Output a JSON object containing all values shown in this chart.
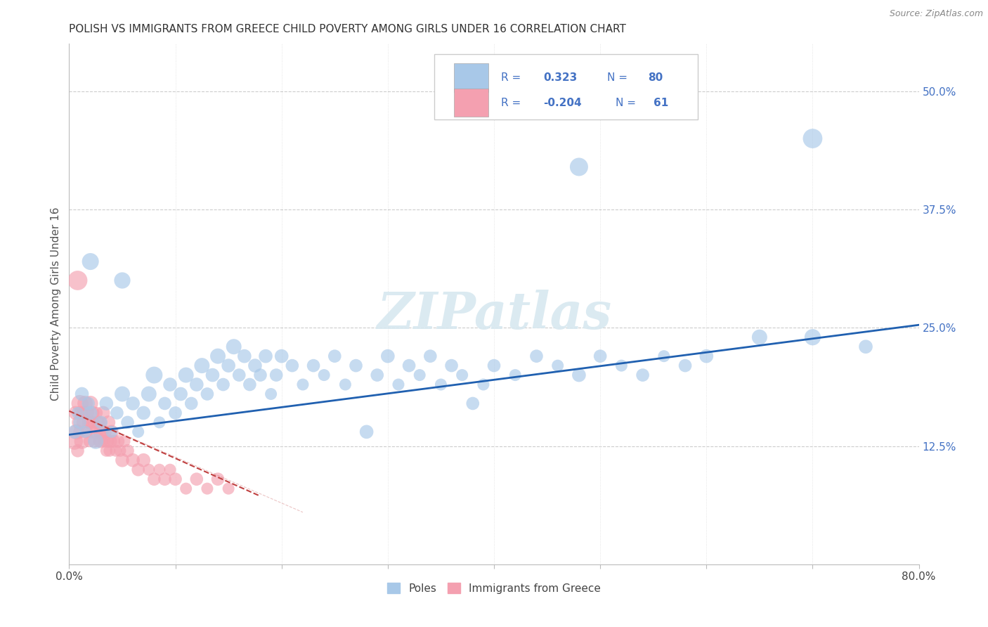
{
  "title": "POLISH VS IMMIGRANTS FROM GREECE CHILD POVERTY AMONG GIRLS UNDER 16 CORRELATION CHART",
  "source": "Source: ZipAtlas.com",
  "ylabel": "Child Poverty Among Girls Under 16",
  "xlim": [
    0.0,
    0.8
  ],
  "ylim": [
    0.0,
    0.55
  ],
  "blue_color": "#a8c8e8",
  "pink_color": "#f4a0b0",
  "trend_blue": "#2060b0",
  "trend_pink": "#c04040",
  "watermark": "ZIPatlas",
  "bg_color": "#ffffff",
  "poles_x": [
    0.005,
    0.008,
    0.01,
    0.012,
    0.015,
    0.018,
    0.02,
    0.025,
    0.03,
    0.035,
    0.04,
    0.045,
    0.05,
    0.055,
    0.06,
    0.065,
    0.07,
    0.075,
    0.08,
    0.085,
    0.09,
    0.095,
    0.1,
    0.105,
    0.11,
    0.115,
    0.12,
    0.125,
    0.13,
    0.135,
    0.14,
    0.145,
    0.15,
    0.155,
    0.16,
    0.165,
    0.17,
    0.175,
    0.18,
    0.185,
    0.19,
    0.195,
    0.2,
    0.21,
    0.22,
    0.23,
    0.24,
    0.25,
    0.26,
    0.27,
    0.28,
    0.29,
    0.3,
    0.31,
    0.32,
    0.33,
    0.34,
    0.35,
    0.36,
    0.37,
    0.38,
    0.39,
    0.4,
    0.42,
    0.44,
    0.46,
    0.48,
    0.5,
    0.52,
    0.54,
    0.56,
    0.58,
    0.6,
    0.65,
    0.7,
    0.75,
    0.02,
    0.05,
    0.48,
    0.7
  ],
  "poles_y": [
    0.14,
    0.16,
    0.15,
    0.18,
    0.14,
    0.17,
    0.16,
    0.13,
    0.15,
    0.17,
    0.14,
    0.16,
    0.18,
    0.15,
    0.17,
    0.14,
    0.16,
    0.18,
    0.2,
    0.15,
    0.17,
    0.19,
    0.16,
    0.18,
    0.2,
    0.17,
    0.19,
    0.21,
    0.18,
    0.2,
    0.22,
    0.19,
    0.21,
    0.23,
    0.2,
    0.22,
    0.19,
    0.21,
    0.2,
    0.22,
    0.18,
    0.2,
    0.22,
    0.21,
    0.19,
    0.21,
    0.2,
    0.22,
    0.19,
    0.21,
    0.14,
    0.2,
    0.22,
    0.19,
    0.21,
    0.2,
    0.22,
    0.19,
    0.21,
    0.2,
    0.17,
    0.19,
    0.21,
    0.2,
    0.22,
    0.21,
    0.2,
    0.22,
    0.21,
    0.2,
    0.22,
    0.21,
    0.22,
    0.24,
    0.24,
    0.23,
    0.32,
    0.3,
    0.42,
    0.45
  ],
  "greece_x": [
    0.005,
    0.006,
    0.007,
    0.008,
    0.009,
    0.01,
    0.01,
    0.011,
    0.012,
    0.013,
    0.014,
    0.015,
    0.016,
    0.017,
    0.018,
    0.019,
    0.02,
    0.02,
    0.021,
    0.022,
    0.023,
    0.024,
    0.025,
    0.026,
    0.027,
    0.028,
    0.029,
    0.03,
    0.03,
    0.031,
    0.032,
    0.033,
    0.034,
    0.035,
    0.036,
    0.037,
    0.038,
    0.039,
    0.04,
    0.042,
    0.044,
    0.046,
    0.048,
    0.05,
    0.052,
    0.055,
    0.06,
    0.065,
    0.07,
    0.075,
    0.08,
    0.085,
    0.09,
    0.095,
    0.1,
    0.11,
    0.12,
    0.13,
    0.14,
    0.15,
    0.008
  ],
  "greece_y": [
    0.13,
    0.16,
    0.14,
    0.12,
    0.15,
    0.17,
    0.14,
    0.16,
    0.13,
    0.15,
    0.16,
    0.17,
    0.14,
    0.16,
    0.15,
    0.13,
    0.15,
    0.17,
    0.14,
    0.16,
    0.15,
    0.13,
    0.14,
    0.16,
    0.15,
    0.13,
    0.14,
    0.13,
    0.15,
    0.14,
    0.16,
    0.13,
    0.14,
    0.12,
    0.13,
    0.15,
    0.12,
    0.13,
    0.14,
    0.13,
    0.12,
    0.13,
    0.12,
    0.11,
    0.13,
    0.12,
    0.11,
    0.1,
    0.11,
    0.1,
    0.09,
    0.1,
    0.09,
    0.1,
    0.09,
    0.08,
    0.09,
    0.08,
    0.09,
    0.08,
    0.3
  ],
  "greece_sizes": [
    300,
    200,
    250,
    180,
    200,
    300,
    180,
    200,
    250,
    180,
    200,
    250,
    180,
    200,
    180,
    150,
    200,
    250,
    180,
    200,
    150,
    180,
    200,
    150,
    180,
    150,
    180,
    200,
    150,
    180,
    200,
    150,
    180,
    150,
    180,
    200,
    150,
    180,
    200,
    180,
    150,
    180,
    150,
    200,
    150,
    180,
    200,
    180,
    200,
    150,
    180,
    150,
    180,
    150,
    180,
    150,
    180,
    150,
    180,
    150,
    400
  ],
  "poles_sizes": [
    200,
    150,
    180,
    200,
    150,
    180,
    200,
    250,
    180,
    200,
    150,
    180,
    250,
    180,
    200,
    150,
    200,
    250,
    300,
    150,
    180,
    200,
    180,
    200,
    250,
    180,
    200,
    250,
    180,
    200,
    250,
    180,
    200,
    250,
    180,
    200,
    180,
    200,
    180,
    200,
    150,
    180,
    200,
    180,
    150,
    180,
    150,
    180,
    150,
    180,
    200,
    180,
    200,
    150,
    180,
    150,
    180,
    150,
    180,
    150,
    180,
    150,
    180,
    150,
    180,
    150,
    200,
    180,
    150,
    180,
    150,
    180,
    200,
    250,
    280,
    200,
    300,
    280,
    350,
    400
  ],
  "blue_trend_x": [
    0.0,
    0.8
  ],
  "blue_trend_y": [
    0.137,
    0.253
  ],
  "pink_trend_x": [
    0.0,
    0.18
  ],
  "pink_trend_y": [
    0.162,
    0.072
  ]
}
